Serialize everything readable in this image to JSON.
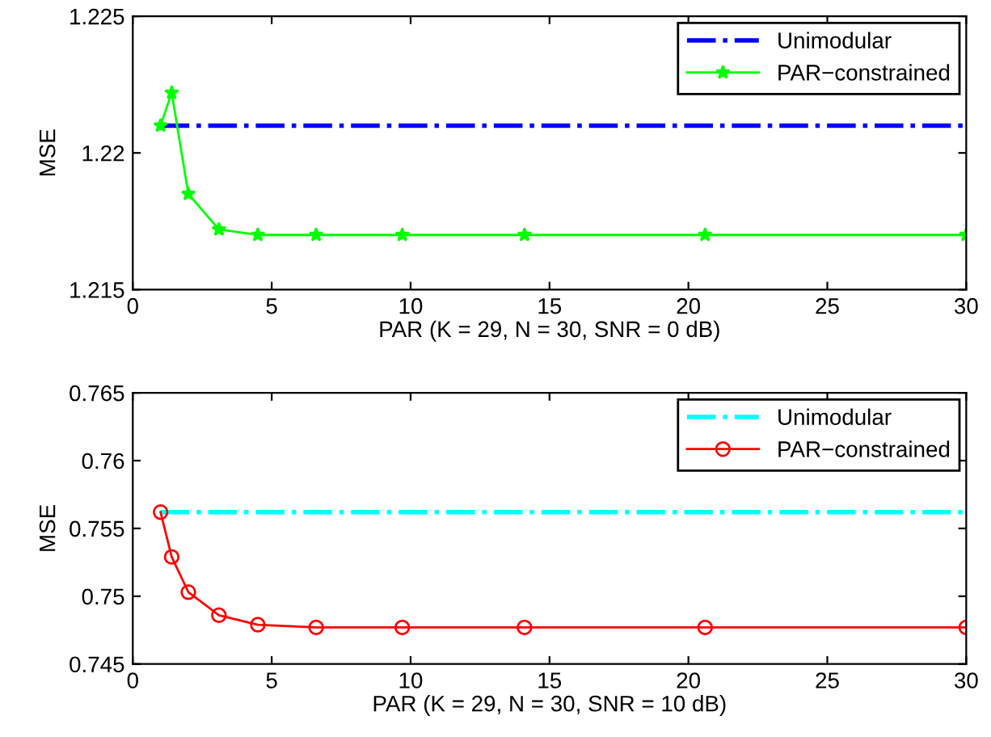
{
  "chart_data": [
    {
      "type": "line",
      "xlabel": "PAR (K = 29, N = 30, SNR = 0 dB)",
      "ylabel": "MSE",
      "xlim": [
        0,
        30
      ],
      "ylim": [
        1.215,
        1.225
      ],
      "xticks": [
        0,
        5,
        10,
        15,
        20,
        25,
        30
      ],
      "yticks": [
        1.215,
        1.22,
        1.225
      ],
      "grid": false,
      "legend": "top right",
      "series": [
        {
          "name": "Unimodular",
          "color": "#0000ff",
          "line_style": "dashdot",
          "marker": "none",
          "x": [
            1,
            30
          ],
          "values": [
            1.221,
            1.221
          ]
        },
        {
          "name": "PAR−constrained",
          "color": "#00ff00",
          "line_style": "solid",
          "marker": "star",
          "x": [
            1.0,
            1.4,
            2.0,
            3.1,
            4.5,
            6.6,
            9.7,
            14.1,
            20.6,
            30
          ],
          "values": [
            1.221,
            1.2222,
            1.2185,
            1.2172,
            1.217,
            1.217,
            1.217,
            1.217,
            1.217,
            1.217
          ]
        }
      ]
    },
    {
      "type": "line",
      "xlabel": "PAR (K = 29, N = 30, SNR = 10 dB)",
      "ylabel": "MSE",
      "xlim": [
        0,
        30
      ],
      "ylim": [
        0.745,
        0.765
      ],
      "xticks": [
        0,
        5,
        10,
        15,
        20,
        25,
        30
      ],
      "yticks": [
        0.745,
        0.75,
        0.755,
        0.76,
        0.765
      ],
      "grid": false,
      "legend": "top right",
      "series": [
        {
          "name": "Unimodular",
          "color": "#00ffff",
          "line_style": "dashdot",
          "marker": "none",
          "x": [
            1,
            30
          ],
          "values": [
            0.7562,
            0.7562
          ]
        },
        {
          "name": "PAR−constrained",
          "color": "#ff0000",
          "line_style": "solid",
          "marker": "circle",
          "x": [
            1.0,
            1.4,
            2.0,
            3.1,
            4.5,
            6.6,
            9.7,
            14.1,
            20.6,
            30
          ],
          "values": [
            0.7562,
            0.7529,
            0.7503,
            0.7486,
            0.7479,
            0.7477,
            0.7477,
            0.7477,
            0.7477,
            0.7477
          ]
        }
      ]
    }
  ]
}
